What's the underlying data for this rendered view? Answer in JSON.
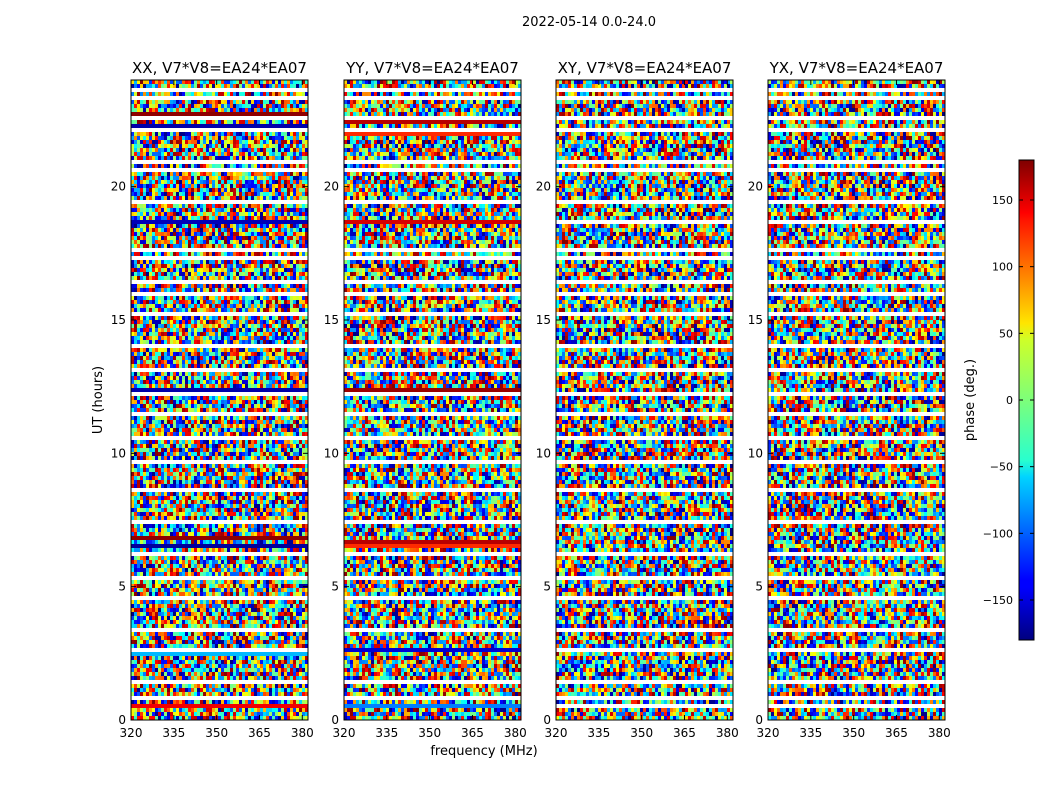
{
  "figure_title": "2022-05-14 0.0-24.0",
  "chart_data": {
    "type": "heatmap",
    "title": "2022-05-14 0.0-24.0",
    "xlabel": "frequency (MHz)",
    "ylabel": "UT (hours)",
    "xlim": [
      320,
      382
    ],
    "ylim": [
      0,
      24
    ],
    "xticks": [
      320,
      335,
      350,
      365,
      380
    ],
    "yticks": [
      0,
      5,
      10,
      15,
      20
    ],
    "panels": [
      {
        "title": "XX, V7*V8=EA24*EA07"
      },
      {
        "title": "YY, V7*V8=EA24*EA07"
      },
      {
        "title": "XY, V7*V8=EA24*EA07"
      },
      {
        "title": "YX, V7*V8=EA24*EA07"
      }
    ],
    "colorbar": {
      "label": "phase (deg.)",
      "range": [
        -180,
        180
      ],
      "ticks": [
        -150,
        -100,
        -50,
        0,
        50,
        100,
        150
      ],
      "colormap": "jet"
    },
    "blank_rows_hours": [
      0.55,
      0.9,
      1.5,
      2.6,
      3.35,
      4.55,
      5.4,
      6.25,
      7.4,
      8.55,
      9.75,
      10.6,
      11.45,
      12.25,
      13.15,
      14.0,
      15.15,
      15.95,
      16.35,
      17.35,
      17.7,
      18.6,
      19.45,
      20.7,
      21.0,
      22.05,
      22.55,
      23.3,
      23.55
    ],
    "coherent_bands": [
      {
        "panel": "XX",
        "hour": 22.25,
        "phase": -165
      },
      {
        "panel": "XX",
        "hour": 22.75,
        "phase": 175
      },
      {
        "panel": "XX",
        "hour": 18.6,
        "phase": -160
      },
      {
        "panel": "XX",
        "hour": 12.45,
        "phase": -165
      },
      {
        "panel": "XX",
        "hour": 6.8,
        "phase": 175
      },
      {
        "panel": "XX",
        "hour": 6.6,
        "phase": -170
      },
      {
        "panel": "XX",
        "hour": 2.55,
        "phase": -70
      },
      {
        "panel": "XX",
        "hour": 0.55,
        "phase": 140
      },
      {
        "panel": "YY",
        "hour": 22.4,
        "phase": 160
      },
      {
        "panel": "YY",
        "hour": 22.0,
        "phase": 120
      },
      {
        "panel": "YY",
        "hour": 18.65,
        "phase": 150
      },
      {
        "panel": "YY",
        "hour": 12.35,
        "phase": 170
      },
      {
        "panel": "YY",
        "hour": 6.75,
        "phase": 160
      },
      {
        "panel": "YY",
        "hour": 6.5,
        "phase": 120
      },
      {
        "panel": "YY",
        "hour": 2.6,
        "phase": -150
      },
      {
        "panel": "YY",
        "hour": 0.55,
        "phase": -90
      }
    ]
  }
}
